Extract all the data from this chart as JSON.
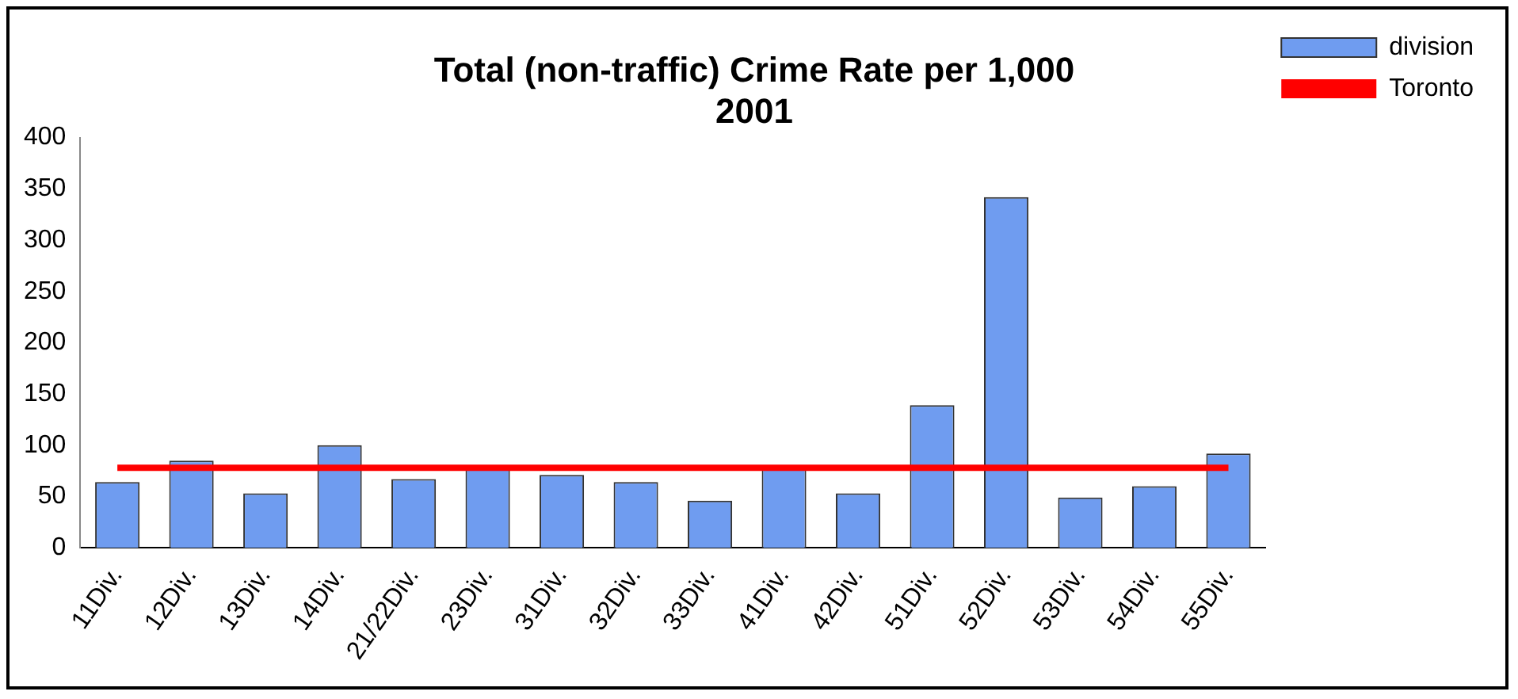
{
  "chart_data": {
    "type": "bar",
    "title": "Total (non-traffic) Crime Rate per 1,000\n2001",
    "categories": [
      "11Div.",
      "12Div.",
      "13Div.",
      "14Div.",
      "21/22Div.",
      "23Div.",
      "31Div.",
      "32Div.",
      "33Div.",
      "41Div.",
      "42Div.",
      "51Div.",
      "52Div.",
      "53Div.",
      "54Div.",
      "55Div."
    ],
    "series": [
      {
        "name": "division",
        "color": "#6f9cf0",
        "values": [
          64,
          85,
          53,
          100,
          67,
          78,
          71,
          64,
          46,
          78,
          53,
          139,
          342,
          49,
          60,
          92
        ]
      },
      {
        "name": "Toronto",
        "type": "line",
        "color": "#ff0000",
        "values": [
          78,
          78,
          78,
          78,
          78,
          78,
          78,
          78,
          78,
          78,
          78,
          78,
          78,
          78,
          78,
          78
        ]
      }
    ],
    "ylim": [
      0,
      400
    ],
    "yticks": [
      0,
      50,
      100,
      150,
      200,
      250,
      300,
      350,
      400
    ],
    "grid": false,
    "legend": "top right",
    "marker": "none"
  }
}
